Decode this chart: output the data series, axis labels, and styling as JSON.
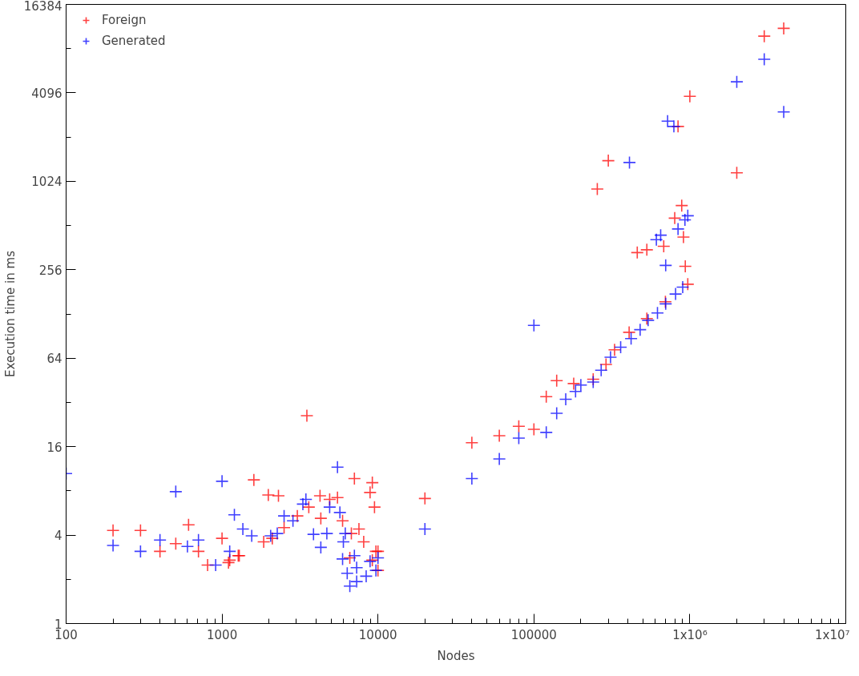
{
  "chart_data": {
    "type": "scatter",
    "xlabel": "Nodes",
    "ylabel": "Execution time in ms",
    "log": "xy",
    "xlim": [
      100,
      10000000
    ],
    "ylim": [
      1,
      16384
    ],
    "xticks": [
      100,
      1000,
      10000,
      100000,
      {
        "value": 1000000,
        "label": "1x10⁶"
      },
      {
        "value": 10000000,
        "label": "1x10⁷"
      }
    ],
    "yticks": [
      1,
      4,
      16,
      64,
      256,
      1024,
      4096,
      16384
    ],
    "grid": false,
    "legend": "top left",
    "marker": "cross",
    "series": [
      {
        "name": "Foreign",
        "color": "#ff0000",
        "x": [
          200,
          300,
          400,
          505,
          610,
          706,
          808,
          1000,
          1100,
          1270,
          1600,
          1980,
          2300,
          3500,
          4250,
          4900,
          5500,
          7060,
          9200,
          8900,
          9500,
          7550,
          8100,
          9700,
          4300,
          3600,
          5930,
          6750,
          3040,
          2500,
          2100,
          1850,
          1290,
          1120,
          10000,
          9200,
          10000,
          6600,
          20000,
          40000,
          60000,
          80000,
          100000,
          120000,
          140000,
          180000,
          240000,
          290000,
          329000,
          408000,
          530000,
          697000,
          970000,
          935000,
          460000,
          530000,
          680000,
          910000,
          800000,
          887000,
          255000,
          300000,
          840000,
          1000000,
          2000000,
          3000000,
          4000000
        ],
        "values": [
          4.3,
          4.3,
          3.1,
          3.5,
          4.7,
          3.1,
          2.5,
          3.8,
          2.6,
          2.9,
          9.5,
          7.5,
          7.4,
          26,
          7.4,
          7.0,
          7.2,
          9.7,
          9.1,
          7.8,
          6.2,
          4.4,
          3.6,
          3.1,
          5.2,
          6.2,
          5.0,
          4.1,
          5.4,
          4.5,
          3.8,
          3.6,
          2.9,
          2.7,
          3.1,
          2.7,
          2.3,
          2.8,
          7.1,
          17,
          19,
          22,
          21,
          35,
          45,
          43,
          46,
          58,
          73,
          96,
          119,
          155,
          204,
          270,
          335,
          350,
          370,
          427,
          575,
          700,
          908,
          1415,
          2420,
          3880,
          1170,
          9960,
          11260
        ]
      },
      {
        "name": "Generated",
        "color": "#0000ff",
        "x": [
          100,
          200,
          300,
          400,
          505,
          600,
          706,
          910,
          1000,
          1120,
          1200,
          1360,
          1550,
          2050,
          2260,
          2500,
          2850,
          3300,
          3450,
          3860,
          4300,
          4700,
          5500,
          5700,
          4900,
          5930,
          6350,
          6600,
          7300,
          8400,
          9700,
          10000,
          8900,
          7300,
          7060,
          6000,
          6170,
          20000,
          40000,
          60000,
          80000,
          120000,
          140000,
          160000,
          185000,
          200000,
          240000,
          270000,
          310000,
          360000,
          420000,
          480000,
          540000,
          620000,
          700000,
          810000,
          900000,
          100000,
          410000,
          720000,
          790000,
          2000000,
          3000000,
          4000000,
          970000,
          840000,
          650000,
          610000,
          700000,
          930000
        ],
        "values": [
          10.5,
          3.4,
          3.1,
          3.7,
          7.9,
          3.35,
          3.7,
          2.5,
          9.3,
          3.1,
          5.5,
          4.4,
          3.95,
          3.95,
          4.1,
          5.4,
          5.0,
          6.5,
          7.0,
          4.05,
          3.3,
          4.1,
          11.6,
          5.7,
          6.2,
          2.75,
          2.2,
          1.8,
          1.93,
          2.1,
          2.3,
          2.8,
          2.65,
          2.4,
          2.9,
          3.6,
          4.1,
          4.4,
          9.7,
          13.2,
          18.3,
          20,
          27,
          33.6,
          38,
          42,
          44,
          53,
          65,
          76,
          87,
          100,
          116,
          130,
          150,
          175,
          195,
          107,
          1375,
          2630,
          2420,
          4870,
          6930,
          3040,
          597,
          485,
          440,
          410,
          274,
          560
        ]
      }
    ]
  }
}
